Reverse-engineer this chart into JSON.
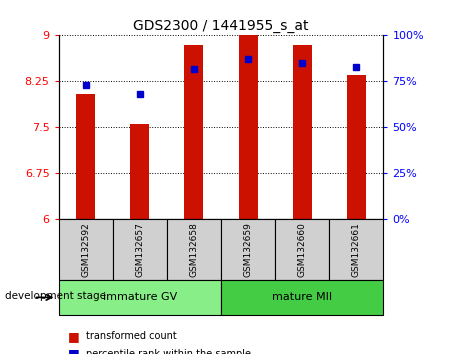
{
  "title": "GDS2300 / 1441955_s_at",
  "samples": [
    "GSM132592",
    "GSM132657",
    "GSM132658",
    "GSM132659",
    "GSM132660",
    "GSM132661"
  ],
  "transformed_counts": [
    8.05,
    7.55,
    8.85,
    9.0,
    8.85,
    8.35
  ],
  "percentile_ranks": [
    73,
    68,
    82,
    87,
    85,
    83
  ],
  "ylim_left": [
    6,
    9
  ],
  "ylim_right": [
    0,
    100
  ],
  "yticks_left": [
    6,
    6.75,
    7.5,
    8.25,
    9
  ],
  "yticks_right": [
    0,
    25,
    50,
    75,
    100
  ],
  "ytick_labels_left": [
    "6",
    "6.75",
    "7.5",
    "8.25",
    "9"
  ],
  "ytick_labels_right": [
    "0%",
    "25%",
    "50%",
    "75%",
    "100%"
  ],
  "bar_color": "#cc1100",
  "dot_color": "#0000cc",
  "bar_width": 0.35,
  "groups": [
    {
      "label": "immature GV",
      "indices": [
        0,
        1,
        2
      ],
      "color": "#88ee88"
    },
    {
      "label": "mature MII",
      "indices": [
        3,
        4,
        5
      ],
      "color": "#44cc44"
    }
  ],
  "group_label_prefix": "development stage",
  "legend_bar_label": "transformed count",
  "legend_dot_label": "percentile rank within the sample",
  "axes_bg": "#ffffff",
  "sample_box_color": "#d0d0d0",
  "ybase": 6
}
